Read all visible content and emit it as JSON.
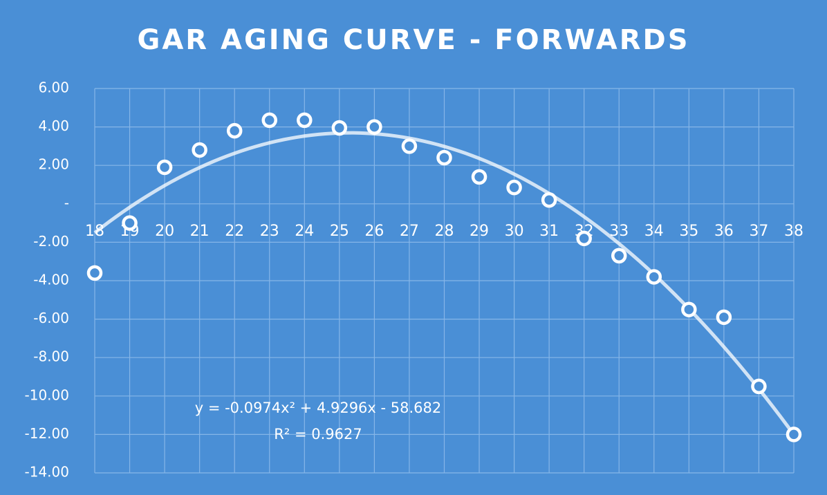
{
  "chart_data": {
    "type": "scatter",
    "title": "GAR AGING CURVE - FORWARDS",
    "x": [
      18,
      19,
      20,
      21,
      22,
      23,
      24,
      25,
      26,
      27,
      28,
      29,
      30,
      31,
      32,
      33,
      34,
      35,
      36,
      37,
      38
    ],
    "values": [
      -3.6,
      -1.0,
      1.9,
      2.8,
      3.8,
      4.35,
      4.35,
      3.95,
      4.0,
      3.0,
      2.4,
      1.4,
      0.85,
      0.2,
      -1.8,
      -2.7,
      -3.8,
      -5.5,
      -5.9,
      -9.5,
      -12.0
    ],
    "color": "#ffffff",
    "xlim": [
      18,
      38
    ],
    "xticks": [
      18,
      19,
      20,
      21,
      22,
      23,
      24,
      25,
      26,
      27,
      28,
      29,
      30,
      31,
      32,
      33,
      34,
      35,
      36,
      37,
      38
    ],
    "ylim": [
      -14,
      6
    ],
    "yticks": [
      {
        "value": -14,
        "label": "-14.00"
      },
      {
        "value": -12,
        "label": "-12.00"
      },
      {
        "value": -10,
        "label": "-10.00"
      },
      {
        "value": -8,
        "label": "-8.00"
      },
      {
        "value": -6,
        "label": "-6.00"
      },
      {
        "value": -4,
        "label": "-4.00"
      },
      {
        "value": -2,
        "label": "-2.00"
      },
      {
        "value": 0,
        "label": "-"
      },
      {
        "value": 2,
        "label": "2.00"
      },
      {
        "value": 4,
        "label": "4.00"
      },
      {
        "value": 6,
        "label": "6.00"
      }
    ],
    "grid": true,
    "trendline": {
      "coefficients": [
        -0.0974,
        4.9296,
        -58.682
      ],
      "equation": "y = -0.0974x² + 4.9296x - 58.682",
      "r_squared": "R² = 0.9627"
    }
  }
}
